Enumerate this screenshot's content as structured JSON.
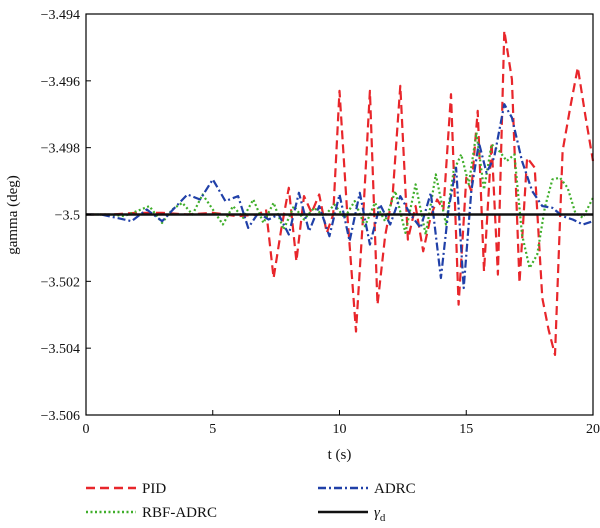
{
  "chart_data": {
    "type": "line",
    "xlabel": "t (s)",
    "ylabel": "gamma (deg)",
    "xlim": [
      0,
      20
    ],
    "ylim": [
      -3.506,
      -3.494
    ],
    "x_ticks": [
      "0",
      "5",
      "10",
      "15",
      "20"
    ],
    "y_ticks": [
      "−3.506",
      "−3.504",
      "−3.502",
      "−3.5",
      "−3.498",
      "−3.496",
      "−3.494"
    ],
    "grid": false,
    "legend_position": "bottom",
    "series": [
      {
        "name": "PID",
        "color": "#e8262b",
        "dash": "dashed",
        "x": [
          0,
          1,
          2,
          3,
          4,
          5,
          6,
          6.8,
          7.1,
          7.4,
          7.7,
          8.0,
          8.3,
          8.6,
          8.9,
          9.2,
          9.5,
          9.75,
          10.0,
          10.3,
          10.65,
          10.95,
          11.2,
          11.5,
          11.8,
          12.1,
          12.4,
          12.7,
          13.0,
          13.3,
          13.6,
          13.85,
          14.1,
          14.4,
          14.7,
          15.0,
          15.2,
          15.45,
          15.7,
          16.0,
          16.25,
          16.5,
          16.8,
          17.1,
          17.4,
          17.7,
          18.0,
          18.25,
          18.5,
          18.8,
          19.1,
          19.4,
          19.7,
          20.0
        ],
        "y": [
          -3.5,
          -3.5,
          -3.49995,
          -3.49995,
          -3.5,
          -3.49995,
          -3.50005,
          -3.5,
          -3.49985,
          -3.5019,
          -3.50045,
          -3.4992,
          -3.5014,
          -3.49945,
          -3.49995,
          -3.4994,
          -3.50055,
          -3.5,
          -3.4963,
          -3.4999,
          -3.5035,
          -3.4998,
          -3.4963,
          -3.5027,
          -3.50065,
          -3.4994,
          -3.49615,
          -3.50075,
          -3.49975,
          -3.5011,
          -3.50005,
          -3.49955,
          -3.49985,
          -3.4964,
          -3.5027,
          -3.4989,
          -3.4993,
          -3.4969,
          -3.5017,
          -3.49785,
          -3.5018,
          -3.4945,
          -3.49595,
          -3.50205,
          -3.4983,
          -3.4986,
          -3.5025,
          -3.50345,
          -3.5042,
          -3.4981,
          -3.4968,
          -3.4956,
          -3.49705,
          -3.4984
        ]
      },
      {
        "name": "RBF-ADRC",
        "color": "#3fae2a",
        "dash": "dotted",
        "x": [
          0,
          1.0,
          1.5,
          2.0,
          2.5,
          3.0,
          3.4,
          3.8,
          4.2,
          4.6,
          5.0,
          5.4,
          5.8,
          6.2,
          6.6,
          7.0,
          7.4,
          7.8,
          8.2,
          8.6,
          9.0,
          9.4,
          9.8,
          10.2,
          10.6,
          11.0,
          11.4,
          11.8,
          12.2,
          12.6,
          13.0,
          13.4,
          13.8,
          14.2,
          14.5,
          14.8,
          15.1,
          15.4,
          15.7,
          16.0,
          16.3,
          16.6,
          16.9,
          17.2,
          17.5,
          17.8,
          18.1,
          18.4,
          18.7,
          19.0,
          19.3,
          19.6,
          20.0
        ],
        "y": [
          -3.5,
          -3.5,
          -3.50005,
          -3.4999,
          -3.49975,
          -3.50025,
          -3.49985,
          -3.49965,
          -3.5,
          -3.4994,
          -3.49985,
          -3.5003,
          -3.49975,
          -3.5001,
          -3.49955,
          -3.50025,
          -3.49965,
          -3.50045,
          -3.49975,
          -3.50015,
          -3.4998,
          -3.50005,
          -3.4997,
          -3.5001,
          -3.4996,
          -3.50035,
          -3.49965,
          -3.5002,
          -3.4993,
          -3.50055,
          -3.4991,
          -3.5006,
          -3.4988,
          -3.5003,
          -3.4987,
          -3.4982,
          -3.4991,
          -3.49755,
          -3.49925,
          -3.4979,
          -3.4981,
          -3.4984,
          -3.4982,
          -3.5006,
          -3.5016,
          -3.5012,
          -3.4998,
          -3.49895,
          -3.4989,
          -3.4992,
          -3.49995,
          -3.5001,
          -3.4995
        ]
      },
      {
        "name": "ADRC",
        "color": "#2040a8",
        "dash": "dashdot",
        "x": [
          0,
          0.6,
          1.2,
          1.8,
          2.4,
          3.0,
          3.5,
          4.0,
          4.5,
          5.0,
          5.5,
          6.0,
          6.4,
          6.8,
          7.2,
          7.6,
          8.0,
          8.4,
          8.8,
          9.2,
          9.6,
          10.0,
          10.4,
          10.8,
          11.2,
          11.6,
          12.0,
          12.4,
          12.8,
          13.2,
          13.6,
          14.0,
          14.3,
          14.6,
          14.9,
          15.2,
          15.5,
          15.8,
          16.1,
          16.5,
          16.8,
          17.2,
          17.6,
          18.0,
          18.4,
          18.8,
          19.2,
          19.6,
          20.0
        ],
        "y": [
          -3.5,
          -3.5,
          -3.5001,
          -3.5002,
          -3.49985,
          -3.5002,
          -3.4998,
          -3.4994,
          -3.49955,
          -3.49895,
          -3.4996,
          -3.49945,
          -3.5004,
          -3.49995,
          -3.50015,
          -3.5,
          -3.5006,
          -3.49935,
          -3.5005,
          -3.49975,
          -3.50065,
          -3.4994,
          -3.5008,
          -3.49935,
          -3.5009,
          -3.4997,
          -3.5003,
          -3.49945,
          -3.5,
          -3.5004,
          -3.49935,
          -3.5019,
          -3.49985,
          -3.4986,
          -3.5022,
          -3.4993,
          -3.49785,
          -3.49875,
          -3.4983,
          -3.4967,
          -3.4971,
          -3.4984,
          -3.4993,
          -3.49975,
          -3.4998,
          -3.50005,
          -3.50015,
          -3.5003,
          -3.5002
        ]
      },
      {
        "name": "γd",
        "color": "#111111",
        "dash": "solid",
        "x": [
          0,
          20
        ],
        "y": [
          -3.5,
          -3.5
        ]
      }
    ]
  },
  "legend": {
    "items": [
      {
        "label": "PID"
      },
      {
        "label": "RBF-ADRC"
      },
      {
        "label": "ADRC"
      },
      {
        "label": "γ",
        "sub": "d"
      }
    ]
  }
}
